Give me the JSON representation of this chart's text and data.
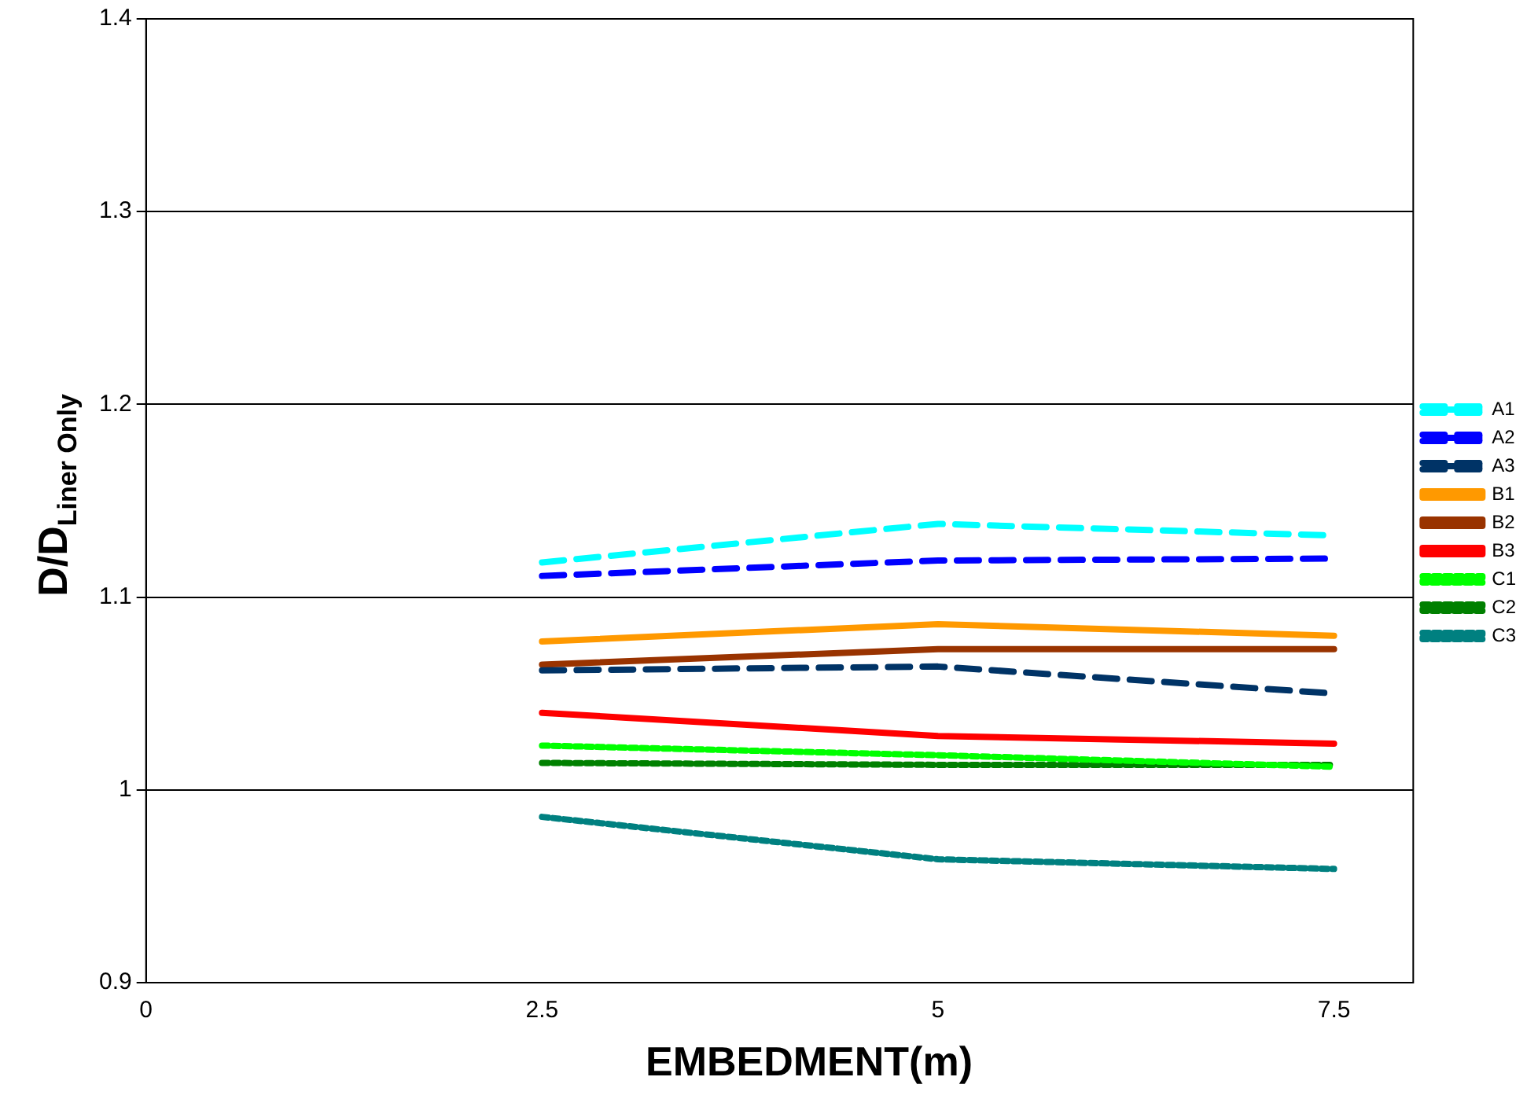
{
  "chart_data": {
    "type": "line",
    "xlabel": "EMBEDMENT(m)",
    "ylabel": "D/D$_{Liner Only}$",
    "x": [
      2.5,
      5,
      7.5
    ],
    "series": [
      {
        "name": "A1",
        "color": "#00ffff",
        "line_style": "dashed",
        "values": [
          1.118,
          1.138,
          1.132
        ]
      },
      {
        "name": "A2",
        "color": "#0000ff",
        "line_style": "dashed",
        "values": [
          1.111,
          1.119,
          1.12
        ]
      },
      {
        "name": "A3",
        "color": "#003366",
        "line_style": "dashed",
        "values": [
          1.062,
          1.064,
          1.05
        ]
      },
      {
        "name": "B1",
        "color": "#ff9900",
        "line_style": "solid",
        "values": [
          1.077,
          1.086,
          1.08
        ]
      },
      {
        "name": "B2",
        "color": "#993300",
        "line_style": "solid",
        "values": [
          1.065,
          1.073,
          1.073
        ]
      },
      {
        "name": "B3",
        "color": "#ff0000",
        "line_style": "solid",
        "values": [
          1.04,
          1.028,
          1.024
        ]
      },
      {
        "name": "C1",
        "color": "#00ff00",
        "line_style": "dotted",
        "values": [
          1.023,
          1.018,
          1.012
        ]
      },
      {
        "name": "C2",
        "color": "#008000",
        "line_style": "dotted",
        "values": [
          1.014,
          1.013,
          1.013
        ]
      },
      {
        "name": "C3",
        "color": "#008080",
        "line_style": "dotted",
        "values": [
          0.986,
          0.964,
          0.959
        ]
      }
    ],
    "xlim": [
      0,
      8
    ],
    "xticks": [
      0,
      2.5,
      5,
      7.5
    ],
    "ylim": [
      0.9,
      1.4
    ],
    "yticks": [
      0.9,
      1,
      1.1,
      1.2,
      1.3,
      1.4
    ],
    "grid": "y",
    "legend": "right",
    "marker": "none"
  }
}
